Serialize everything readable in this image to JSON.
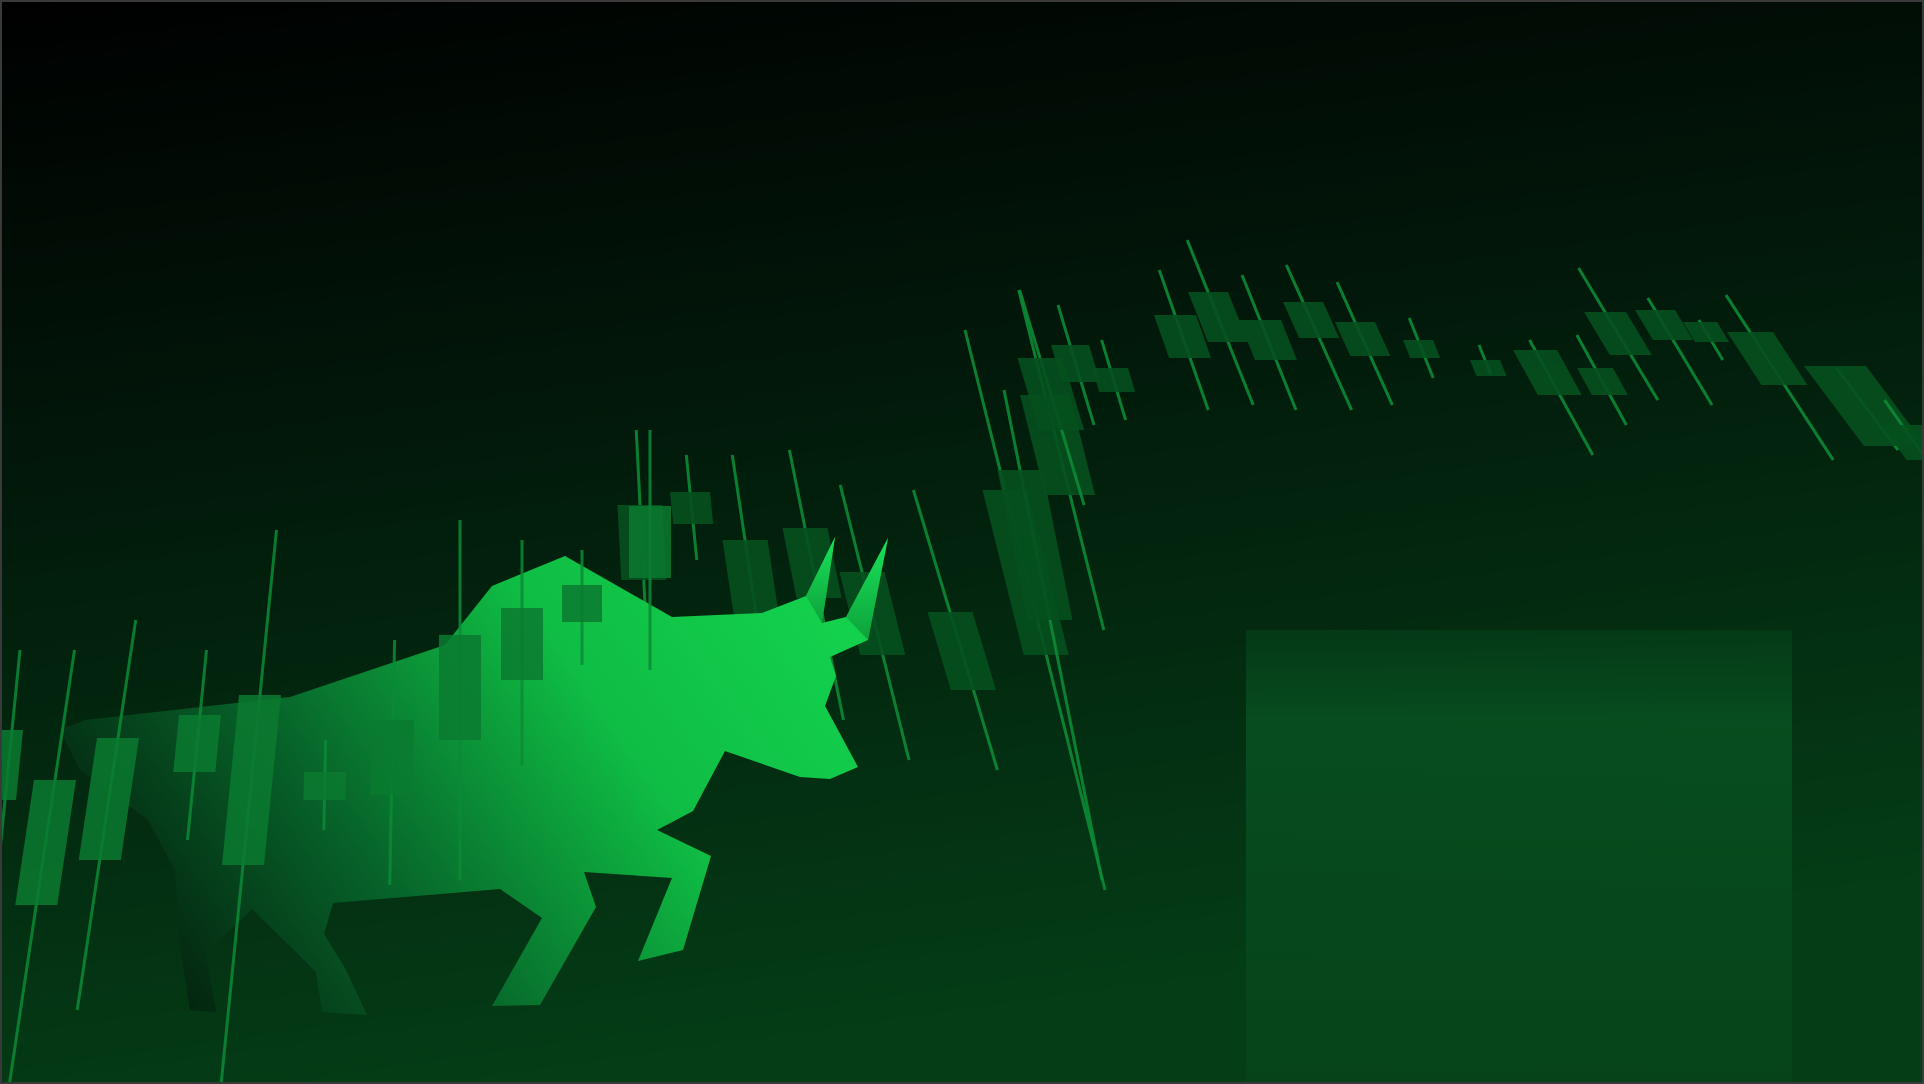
{
  "scene": {
    "description_free": true,
    "colors": {
      "bg_top": "#000000",
      "bg_bottom": "#04401a",
      "bull_dark": "#053018",
      "bull_mid": "#0a8f3a",
      "bull_bright": "#10c447",
      "candle_front": "#0a7a30",
      "candle_back": "#05501e",
      "wick": "#0c8a36",
      "panel": "#074a1f"
    },
    "icons": [
      "bull-silhouette",
      "candlestick-chart"
    ]
  }
}
